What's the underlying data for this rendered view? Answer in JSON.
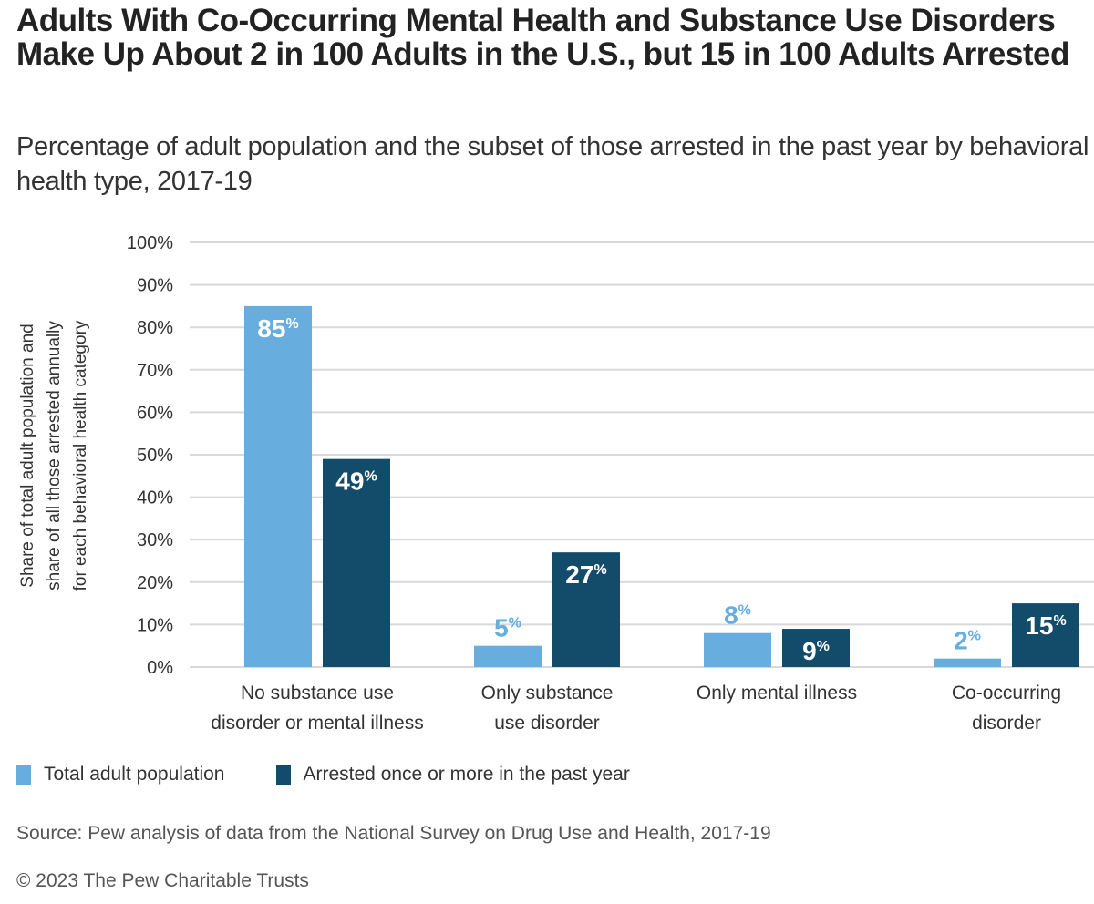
{
  "chart_data": {
    "type": "bar",
    "title": "Adults With Co-Occurring Mental Health and Substance Use Disorders Make Up About 2 in 100 Adults in the U.S., but 15 in 100 Adults Arrested",
    "subtitle": "Percentage of adult population and the subset of those arrested in the past year by behavioral health type, 2017-19",
    "xlabel": "",
    "ylabel": "Share of total adult population and share of all those arrested annually for each behavioral health category",
    "ylabel_lines": [
      "Share of total adult population and",
      "share of all those arrested annually",
      "for each behavioral health category"
    ],
    "ylim": [
      0,
      100
    ],
    "yticks": [
      0,
      10,
      20,
      30,
      40,
      50,
      60,
      70,
      80,
      90,
      100
    ],
    "ytick_labels": [
      "0%",
      "10%",
      "20%",
      "30%",
      "40%",
      "50%",
      "60%",
      "70%",
      "80%",
      "90%",
      "100%"
    ],
    "grid": true,
    "categories": [
      [
        "No substance use",
        "disorder or mental illness"
      ],
      [
        "Only substance",
        "use disorder"
      ],
      [
        "Only mental illness"
      ],
      [
        "Co-occurring",
        "disorder"
      ]
    ],
    "series": [
      {
        "name": "Total adult population",
        "color": "#67aede",
        "values": [
          85,
          5,
          8,
          2
        ]
      },
      {
        "name": "Arrested once or more in the past year",
        "color": "#134b6b",
        "values": [
          49,
          27,
          9,
          15
        ]
      }
    ],
    "value_suffix": "%",
    "legend_position": "bottom-left"
  },
  "footer": {
    "source": "Source: Pew analysis of data from the National Survey on Drug Use and Health, 2017-19",
    "copyright": "© 2023 The Pew Charitable Trusts"
  }
}
